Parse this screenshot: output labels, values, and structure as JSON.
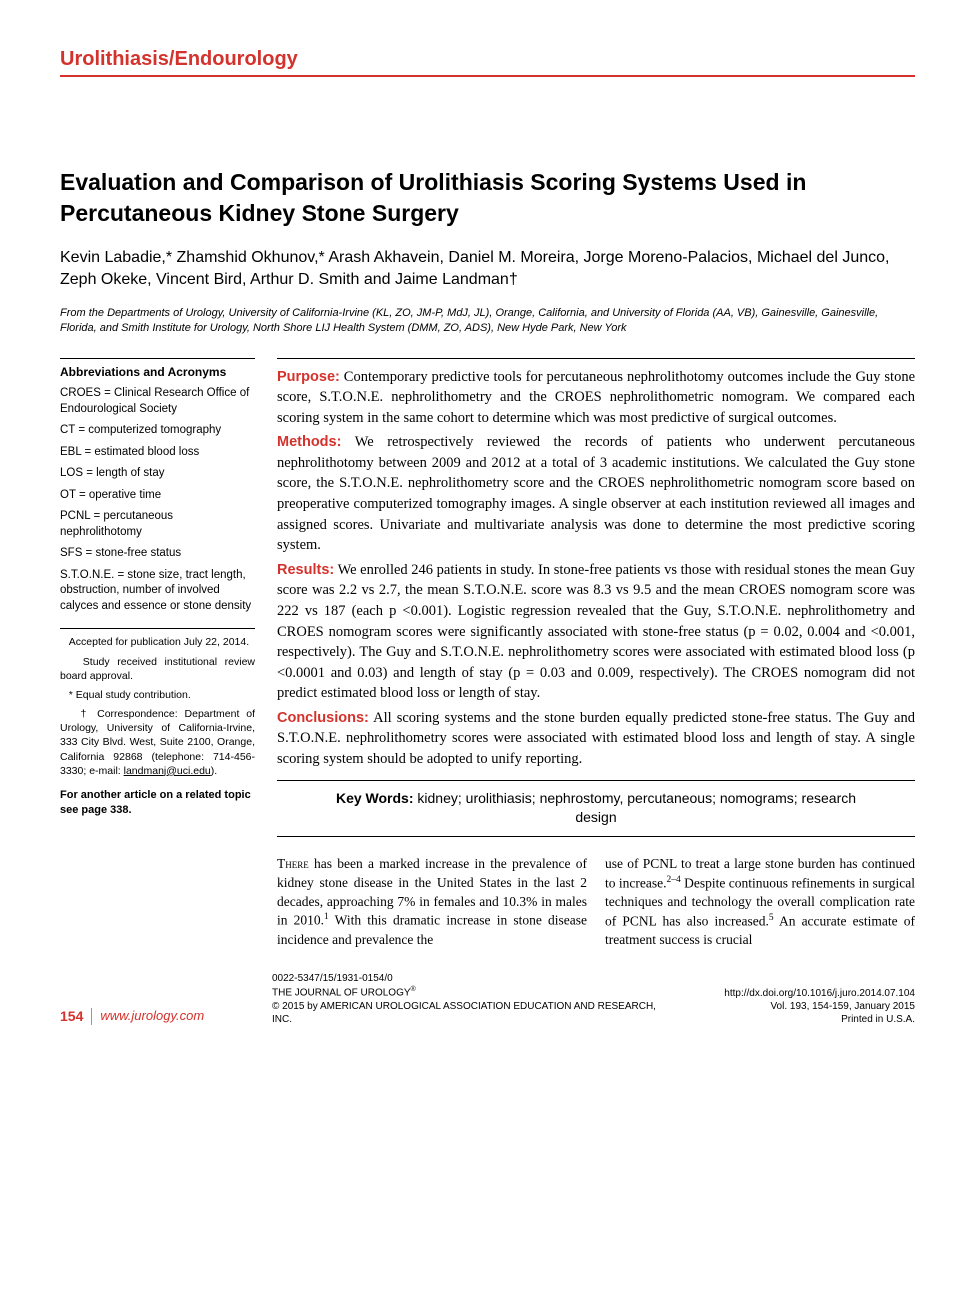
{
  "section_header": "Urolithiasis/Endourology",
  "title": "Evaluation and Comparison of Urolithiasis Scoring Systems Used in Percutaneous Kidney Stone Surgery",
  "authors": "Kevin Labadie,* Zhamshid Okhunov,* Arash Akhavein, Daniel M. Moreira, Jorge Moreno-Palacios, Michael del Junco, Zeph Okeke, Vincent Bird, Arthur D. Smith and Jaime Landman†",
  "affiliation": "From the Departments of Urology, University of California-Irvine (KL, ZO, JM-P, MdJ, JL), Orange, California, and University of Florida (AA, VB), Gainesville, Gainesville, Florida, and Smith Institute for Urology, North Shore LIJ Health System (DMM, ZO, ADS), New Hyde Park, New York",
  "abbrev": {
    "heading": "Abbreviations and Acronyms",
    "items": [
      "CROES = Clinical Research Office of Endourological Society",
      "CT = computerized tomography",
      "EBL = estimated blood loss",
      "LOS = length of stay",
      "OT = operative time",
      "PCNL = percutaneous nephrolithotomy",
      "SFS = stone-free status",
      "S.T.O.N.E. = stone size, tract length, obstruction, number of involved calyces and essence or stone density"
    ]
  },
  "notes": {
    "accepted": "Accepted for publication July 22, 2014.",
    "irb": "Study received institutional review board approval.",
    "equal": "* Equal study contribution.",
    "corr": "† Correspondence: Department of Urology, University of California-Irvine, 333 City Blvd. West, Suite 2100, Orange, California 92868 (telephone: 714-456-3330; e-mail: ",
    "corr_email": "landmanj@uci.edu",
    "corr_end": ")."
  },
  "related": "For another article on a related topic see page 338.",
  "abstract": {
    "purpose_label": "Purpose:",
    "purpose": " Contemporary predictive tools for percutaneous nephrolithotomy outcomes include the Guy stone score, S.T.O.N.E. nephrolithometry and the CROES nephrolithometric nomogram. We compared each scoring system in the same cohort to determine which was most predictive of surgical outcomes.",
    "methods_label": "Methods:",
    "methods": " We retrospectively reviewed the records of patients who underwent percutaneous nephrolithotomy between 2009 and 2012 at a total of 3 academic institutions. We calculated the Guy stone score, the S.T.O.N.E. nephrolithometry score and the CROES nephrolithometric nomogram score based on preoperative computerized tomography images. A single observer at each institution reviewed all images and assigned scores. Univariate and multivariate analysis was done to determine the most predictive scoring system.",
    "results_label": "Results:",
    "results": " We enrolled 246 patients in study. In stone-free patients vs those with residual stones the mean Guy score was 2.2 vs 2.7, the mean S.T.O.N.E. score was 8.3 vs 9.5 and the mean CROES nomogram score was 222 vs 187 (each p <0.001). Logistic regression revealed that the Guy, S.T.O.N.E. nephrolithometry and CROES nomogram scores were significantly associated with stone-free status (p = 0.02, 0.004 and <0.001, respectively). The Guy and S.T.O.N.E. nephrolithometry scores were associated with estimated blood loss (p <0.0001 and 0.03) and length of stay (p = 0.03 and 0.009, respectively). The CROES nomogram did not predict estimated blood loss or length of stay.",
    "conclusions_label": "Conclusions:",
    "conclusions": " All scoring systems and the stone burden equally predicted stone-free status. The Guy and S.T.O.N.E. nephrolithometry scores were associated with estimated blood loss and length of stay. A single scoring system should be adopted to unify reporting."
  },
  "keywords_label": "Key Words:",
  "keywords": " kidney; urolithiasis; nephrostomy, percutaneous; nomograms; research design",
  "body": {
    "col1_first": "There",
    "col1": " has been a marked increase in the prevalence of kidney stone disease in the United States in the last 2 decades, approaching 7% in females and 10.3% in males in 2010.",
    "col1_sup": "1",
    "col1_b": " With this dramatic increase in stone disease incidence and prevalence the",
    "col2_a": "use of PCNL to treat a large stone burden has continued to increase.",
    "col2_sup1": "2–4",
    "col2_b": " Despite continuous refinements in surgical techniques and technology the overall complication rate of PCNL has also increased.",
    "col2_sup2": "5",
    "col2_c": " An accurate estimate of treatment success is crucial"
  },
  "footer": {
    "page": "154",
    "url": "www.jurology.com",
    "issn": "0022-5347/15/1931-0154/0",
    "journal": "THE JOURNAL OF UROLOGY",
    "reg": "®",
    "copyright": "© 2015 by AMERICAN UROLOGICAL ASSOCIATION EDUCATION AND RESEARCH, INC.",
    "doi": "http://dx.doi.org/10.1016/j.juro.2014.07.104",
    "vol": "Vol. 193, 154-159, January 2015",
    "printed": "Printed in U.S.A."
  },
  "colors": {
    "accent": "#d4322c",
    "text": "#000000",
    "background": "#ffffff"
  }
}
